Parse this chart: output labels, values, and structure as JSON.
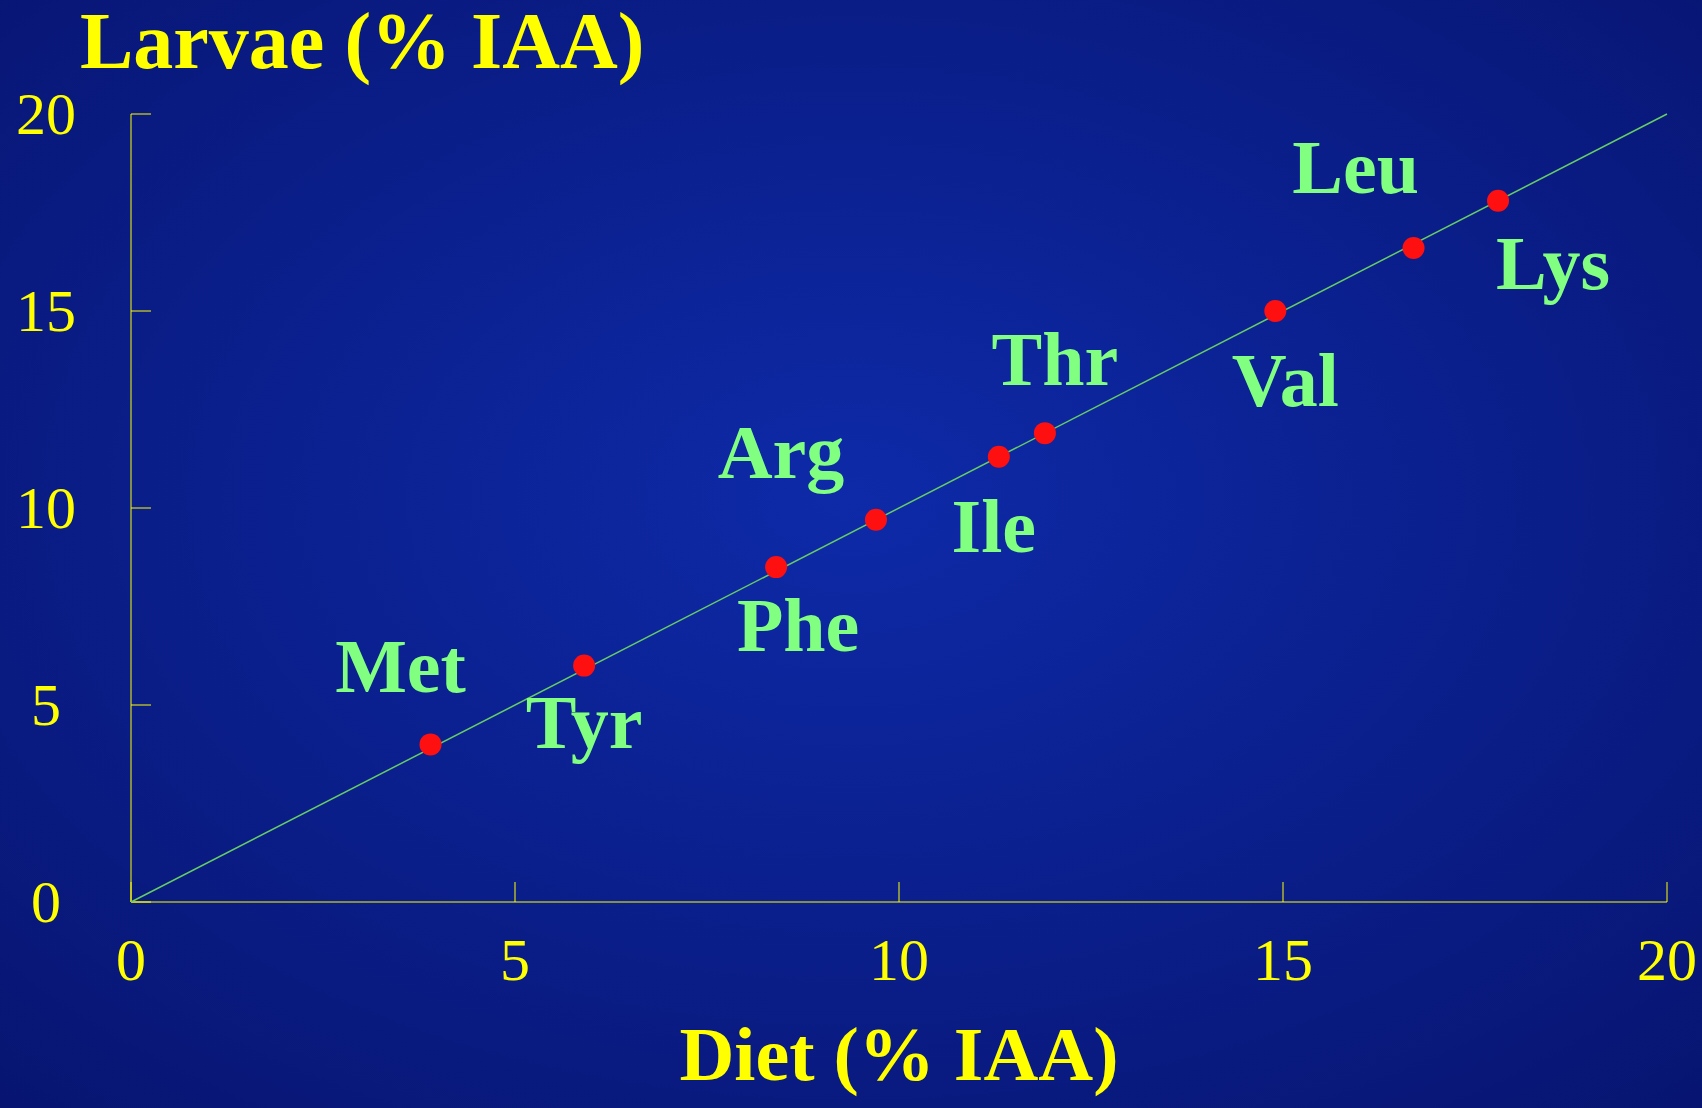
{
  "chart_data": {
    "type": "scatter",
    "xlabel": "Diet (% IAA)",
    "ylabel": "Larvae (% IAA)",
    "xlim": [
      0,
      20
    ],
    "ylim": [
      0,
      20
    ],
    "xticks": [
      0,
      5,
      10,
      15,
      20
    ],
    "yticks": [
      0,
      5,
      10,
      15,
      20
    ],
    "grid": false,
    "marker": "circle",
    "series": [
      {
        "type": "line",
        "color": "#66cc66",
        "x": [
          0,
          20
        ],
        "values": [
          0,
          20
        ],
        "marker": "none"
      },
      {
        "color": "#ff1010",
        "x": [
          3.9,
          5.9,
          8.4,
          9.7,
          11.3,
          11.9,
          14.9,
          16.7,
          17.8
        ],
        "values": [
          4.0,
          6.0,
          8.5,
          9.7,
          11.3,
          11.9,
          15.0,
          16.6,
          17.8
        ]
      }
    ],
    "annotations": [
      {
        "text": "Met",
        "x": 3.9,
        "y": 4.0
      },
      {
        "text": "Tyr",
        "x": 5.9,
        "y": 6.0
      },
      {
        "text": "Phe",
        "x": 8.4,
        "y": 8.5
      },
      {
        "text": "Arg",
        "x": 9.7,
        "y": 9.7
      },
      {
        "text": "Ile",
        "x": 11.3,
        "y": 11.3
      },
      {
        "text": "Thr",
        "x": 11.9,
        "y": 11.9
      },
      {
        "text": "Val",
        "x": 14.9,
        "y": 15.0
      },
      {
        "text": "Leu",
        "x": 16.7,
        "y": 16.6
      },
      {
        "text": "Lys",
        "x": 17.8,
        "y": 17.8
      }
    ]
  }
}
